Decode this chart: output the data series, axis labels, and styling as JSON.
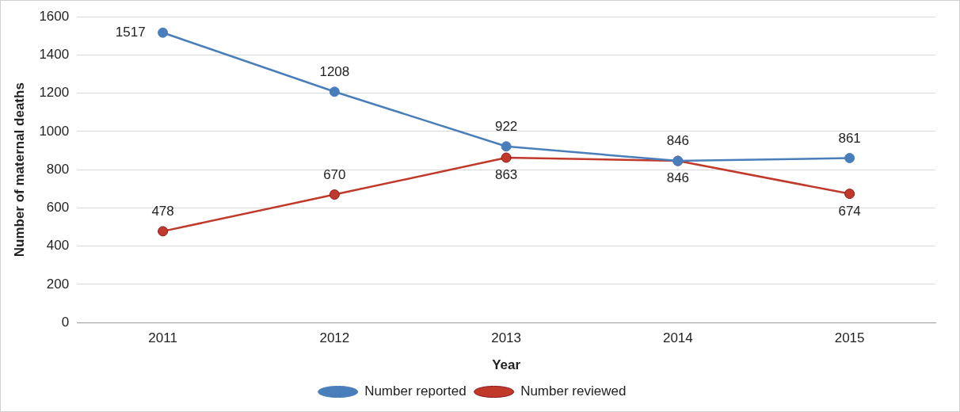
{
  "chart_data": {
    "type": "line",
    "xlabel": "Year",
    "ylabel": "Number of maternal deaths",
    "categories": [
      "2011",
      "2012",
      "2013",
      "2014",
      "2015"
    ],
    "series": [
      {
        "name": "Number reported",
        "color": "#4a7ebb",
        "values": [
          1517,
          1208,
          922,
          846,
          861
        ]
      },
      {
        "name": "Number reviewed",
        "color": "#c0392b",
        "values": [
          478,
          670,
          863,
          846,
          674
        ]
      }
    ],
    "ylim": [
      0,
      1600
    ],
    "yticks": [
      0,
      200,
      400,
      600,
      800,
      1000,
      1200,
      1400,
      1600
    ],
    "grid": "y",
    "legend": "bottom",
    "marker": "circle",
    "line_style": "solid",
    "data_labels": true
  }
}
